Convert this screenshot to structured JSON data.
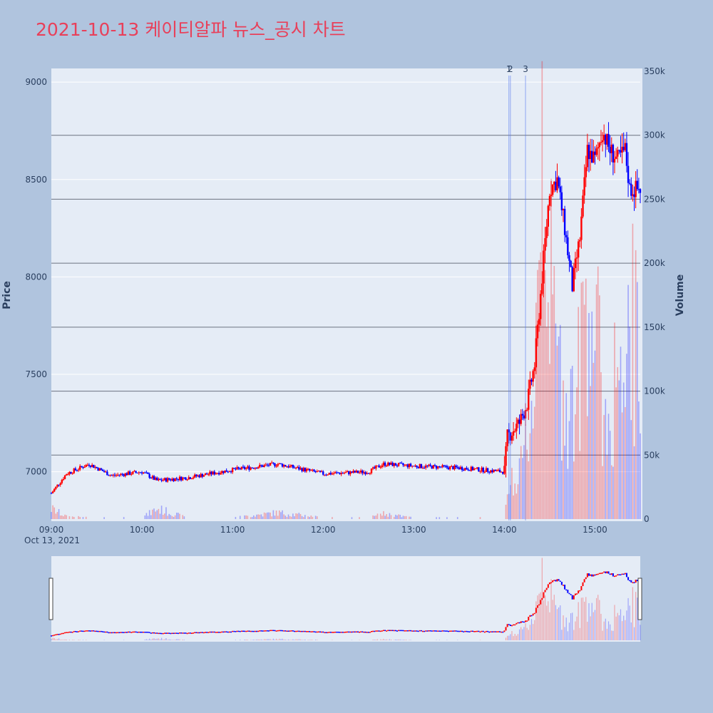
{
  "title": "2021-10-13 케이티알파 뉴스_공시 차트",
  "colors": {
    "up": "#ff0000",
    "down": "#0000ff",
    "background": "#b0c4de",
    "plot": "#e5ecf6",
    "title": "#e8405a"
  },
  "chart_data": {
    "type": "candlestick",
    "title": "2021-10-13 케이티알파 뉴스_공시 차트",
    "xlabel": "",
    "ylabel": "Price",
    "y2label": "Volume",
    "x_range": [
      "09:00",
      "15:30"
    ],
    "x_ticks": [
      "09:00",
      "10:00",
      "11:00",
      "12:00",
      "13:00",
      "14:00",
      "15:00"
    ],
    "x_date_label": "Oct 13, 2021",
    "price_range": [
      6750,
      9070
    ],
    "price_ticks": [
      "9000",
      "8500",
      "8000",
      "7500",
      "7000"
    ],
    "volume_range": [
      0,
      350000
    ],
    "volume_ticks": [
      "350k",
      "300k",
      "250k",
      "200k",
      "150k",
      "100k",
      "50k",
      "0"
    ],
    "annotations": [
      {
        "label": "1",
        "time": "14:03"
      },
      {
        "label": "2",
        "time": "14:04"
      },
      {
        "label": "3",
        "time": "14:14"
      }
    ],
    "series_keypoints": [
      {
        "time": "09:00",
        "price": 6890,
        "volume": 8000
      },
      {
        "time": "09:10",
        "price": 6990,
        "volume": 2000
      },
      {
        "time": "09:25",
        "price": 7040,
        "volume": 1000
      },
      {
        "time": "09:40",
        "price": 6980,
        "volume": 1000
      },
      {
        "time": "10:00",
        "price": 7000,
        "volume": 1000
      },
      {
        "time": "10:10",
        "price": 6955,
        "volume": 8000
      },
      {
        "time": "10:30",
        "price": 6970,
        "volume": 1000
      },
      {
        "time": "11:00",
        "price": 7010,
        "volume": 1000
      },
      {
        "time": "11:30",
        "price": 7040,
        "volume": 5000
      },
      {
        "time": "12:00",
        "price": 6990,
        "volume": 1000
      },
      {
        "time": "12:30",
        "price": 7000,
        "volume": 1000
      },
      {
        "time": "12:40",
        "price": 7040,
        "volume": 4000
      },
      {
        "time": "13:00",
        "price": 7030,
        "volume": 1000
      },
      {
        "time": "13:30",
        "price": 7020,
        "volume": 1000
      },
      {
        "time": "14:00",
        "price": 7000,
        "volume": 1000
      },
      {
        "time": "14:02",
        "price": 7180,
        "volume": 25000
      },
      {
        "time": "14:10",
        "price": 7250,
        "volume": 30000
      },
      {
        "time": "14:15",
        "price": 7350,
        "volume": 60000
      },
      {
        "time": "14:20",
        "price": 7550,
        "volume": 110000
      },
      {
        "time": "14:25",
        "price": 8000,
        "volume": 325000
      },
      {
        "time": "14:30",
        "price": 8450,
        "volume": 180000
      },
      {
        "time": "14:35",
        "price": 8500,
        "volume": 120000
      },
      {
        "time": "14:40",
        "price": 8250,
        "volume": 100000
      },
      {
        "time": "14:45",
        "price": 7950,
        "volume": 90000
      },
      {
        "time": "14:50",
        "price": 8200,
        "volume": 110000
      },
      {
        "time": "14:55",
        "price": 8650,
        "volume": 200000
      },
      {
        "time": "15:00",
        "price": 8600,
        "volume": 150000
      },
      {
        "time": "15:05",
        "price": 8750,
        "volume": 90000
      },
      {
        "time": "15:10",
        "price": 8650,
        "volume": 70000
      },
      {
        "time": "15:15",
        "price": 8600,
        "volume": 130000
      },
      {
        "time": "15:20",
        "price": 8650,
        "volume": 60000
      },
      {
        "time": "15:23",
        "price": 8450,
        "volume": 170000
      },
      {
        "time": "15:30",
        "price": 8450,
        "volume": 105000
      }
    ]
  }
}
